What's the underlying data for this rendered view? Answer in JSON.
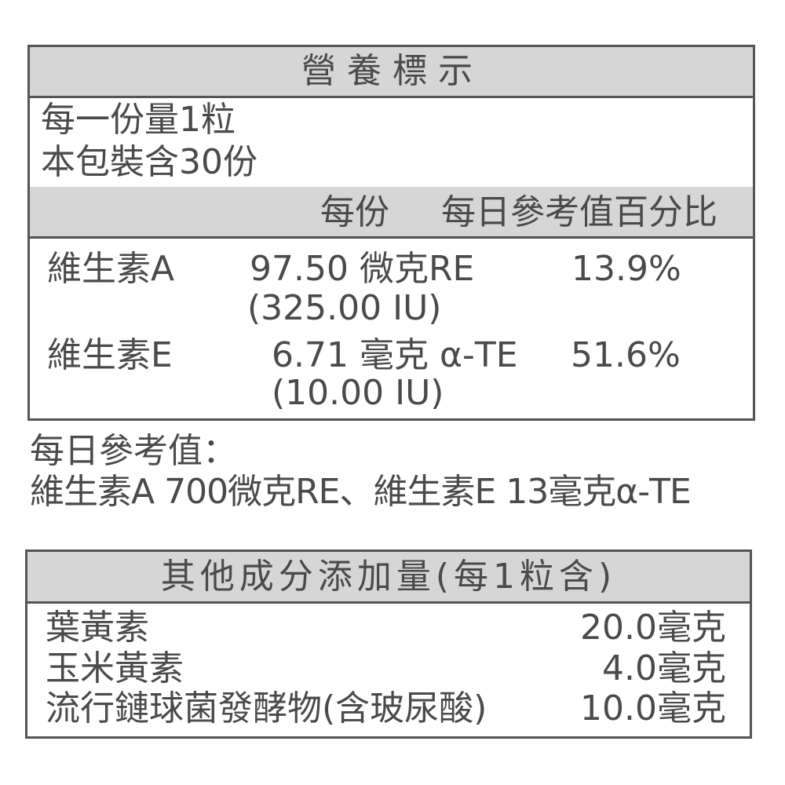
{
  "label": {
    "title": "營養標示",
    "serving_size": "每一份量1粒",
    "servings_per_package": "本包裝含30份",
    "columns": [
      "每份",
      "每日參考值百分比"
    ],
    "rows": [
      {
        "name": "維生素A",
        "amount": "97.50 微克RE",
        "amount_iu": "(325.00 IU)",
        "daily_value": "13.9%"
      },
      {
        "name": "維生素E",
        "amount": "6.71 毫克 α-TE",
        "amount_iu": "(10.00 IU)",
        "daily_value": "51.6%"
      }
    ]
  },
  "daily_reference": {
    "title": "每日參考值：",
    "text": "維生素A 700微克RE、維生素E 13毫克α-TE"
  },
  "other": {
    "title": "其他成分添加量(每1粒含)",
    "rows": [
      {
        "name": "葉黃素",
        "amount": "20.0毫克"
      },
      {
        "name": "玉米黃素",
        "amount": "4.0毫克"
      },
      {
        "name": "流行鏈球菌發酵物(含玻尿酸)",
        "amount": "10.0毫克"
      }
    ]
  }
}
